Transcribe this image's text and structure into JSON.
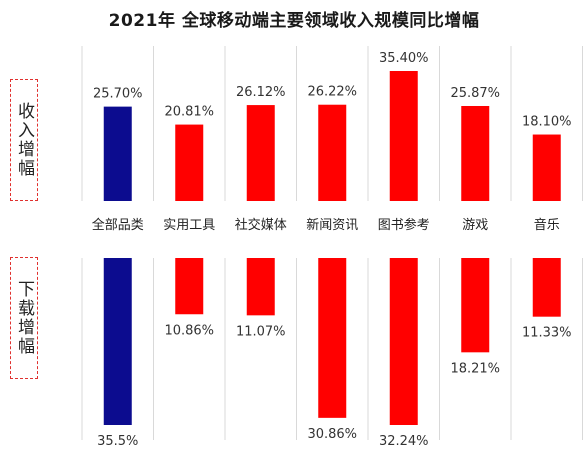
{
  "title": "2021年 全球移动端主要领域收入规模同比增幅",
  "side_labels": {
    "revenue": "收入增幅",
    "download": "下载增幅"
  },
  "colors": {
    "highlight": "#0c0c8f",
    "normal": "#ff0000",
    "grid": "#d9d9d9"
  },
  "chart_data": [
    {
      "type": "bar",
      "title": "收入增幅",
      "categories": [
        "全部品类",
        "实用工具",
        "社交媒体",
        "新闻资讯",
        "图书参考",
        "游戏",
        "音乐"
      ],
      "values": [
        25.7,
        20.81,
        26.12,
        26.22,
        35.4,
        25.87,
        18.1
      ],
      "value_labels": [
        "25.70%",
        "20.81%",
        "26.12%",
        "26.22%",
        "35.40%",
        "25.87%",
        "18.10%"
      ],
      "highlight_index": 0,
      "ylim": [
        0,
        35.4
      ],
      "grid": true,
      "legend": "none"
    },
    {
      "type": "bar",
      "title": "下载增幅",
      "categories": [
        "全部品类",
        "实用工具",
        "社交媒体",
        "新闻资讯",
        "图书参考",
        "游戏",
        "音乐"
      ],
      "values": [
        35.5,
        10.86,
        11.07,
        30.86,
        32.24,
        18.21,
        11.33
      ],
      "value_labels": [
        "35.5%",
        "10.86%",
        "11.07%",
        "30.86%",
        "32.24%",
        "18.21%",
        "11.33%"
      ],
      "highlight_index": 0,
      "orientation": "downward",
      "ylim": [
        0,
        32.24
      ],
      "grid": true,
      "legend": "none"
    }
  ]
}
